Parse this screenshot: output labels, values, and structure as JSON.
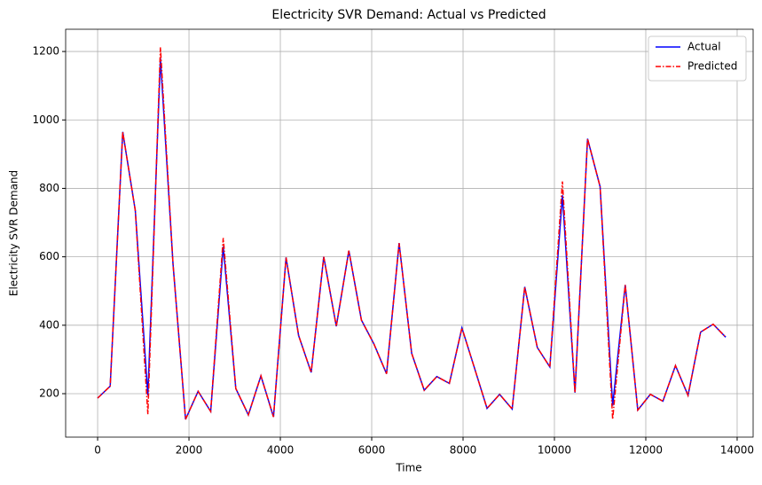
{
  "chart_data": {
    "type": "line",
    "title": "Electricity SVR Demand: Actual vs Predicted",
    "xlabel": "Time",
    "ylabel": "Electricity SVR Demand",
    "x": [
      0,
      275,
      550,
      825,
      1100,
      1375,
      1650,
      1925,
      2200,
      2475,
      2750,
      3025,
      3300,
      3575,
      3850,
      4125,
      4400,
      4675,
      4950,
      5225,
      5500,
      5775,
      6050,
      6325,
      6600,
      6875,
      7150,
      7425,
      7700,
      7975,
      8250,
      8525,
      8800,
      9075,
      9350,
      9625,
      9900,
      10175,
      10450,
      10725,
      11000,
      11275,
      11550,
      11825,
      12100,
      12375,
      12650,
      12925,
      13200,
      13475,
      13750
    ],
    "series": [
      {
        "name": "Actual",
        "color": "#0000ff",
        "dash": "solid",
        "values": [
          187,
          222,
          965,
          735,
          195,
          1180,
          580,
          125,
          207,
          148,
          630,
          215,
          138,
          252,
          132,
          598,
          370,
          262,
          600,
          397,
          618,
          415,
          345,
          258,
          640,
          318,
          210,
          250,
          230,
          392,
          275,
          157,
          198,
          155,
          512,
          335,
          278,
          780,
          203,
          945,
          805,
          165,
          518,
          152,
          198,
          178,
          282,
          195,
          380,
          403,
          365
        ]
      },
      {
        "name": "Predicted",
        "color": "#ff0000",
        "dash": "dashdot",
        "values": [
          187,
          222,
          965,
          735,
          140,
          1212,
          580,
          125,
          207,
          148,
          655,
          215,
          138,
          252,
          132,
          598,
          370,
          262,
          600,
          397,
          618,
          415,
          345,
          258,
          640,
          318,
          210,
          250,
          230,
          392,
          275,
          157,
          198,
          155,
          512,
          335,
          278,
          820,
          203,
          945,
          805,
          125,
          518,
          152,
          198,
          178,
          282,
          195,
          380,
          403,
          365
        ]
      }
    ],
    "xlim": [
      -700,
      14350
    ],
    "ylim": [
      73,
      1265
    ],
    "xticks": [
      0,
      2000,
      4000,
      6000,
      8000,
      10000,
      12000,
      14000
    ],
    "yticks": [
      200,
      400,
      600,
      800,
      1000,
      1200
    ],
    "grid": true,
    "legend": "upper right"
  }
}
